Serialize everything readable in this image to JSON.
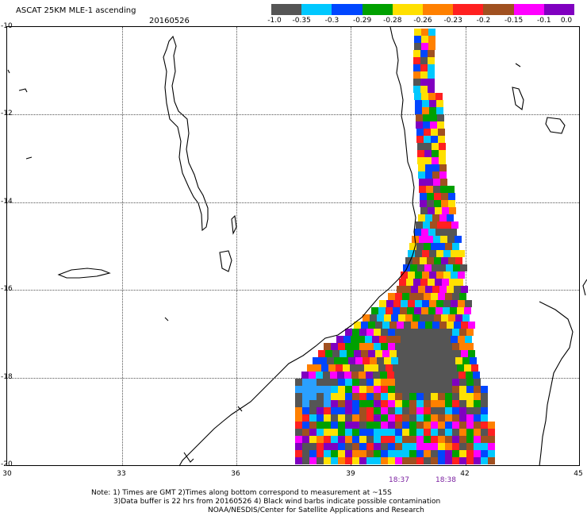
{
  "header": {
    "title": "ASCAT 25KM MLE-1 ascending",
    "date": "20160526"
  },
  "colorbar": {
    "colors": [
      "#555555",
      "#00c8ff",
      "#0046ff",
      "#00a000",
      "#ffe000",
      "#ff8000",
      "#ff2020",
      "#a05020",
      "#ff00ff",
      "#8000c0"
    ],
    "labels": [
      "-1.0",
      "-0.35",
      "-0.3",
      "-0.29",
      "-0.28",
      "-0.26",
      "-0.23",
      "-0.2",
      "-0.15",
      "-0.1",
      "0.0"
    ]
  },
  "axes": {
    "lat_labels": [
      "-10",
      "-12",
      "-14",
      "-16",
      "-18",
      "-20"
    ],
    "lon_labels": [
      "30",
      "33",
      "36",
      "39",
      "42",
      "45"
    ]
  },
  "times": [
    "18:37",
    "18:38"
  ],
  "notes": {
    "line1": "Note: 1) Times are GMT 2)Times along bottom correspond to measurement at ~15S",
    "line2": "3)Data buffer is 22 hrs from 20160526 4) Black wind barbs indicate possible contamination",
    "line3": "NOAA/NESDIS/Center for Satellite Applications and Research"
  }
}
